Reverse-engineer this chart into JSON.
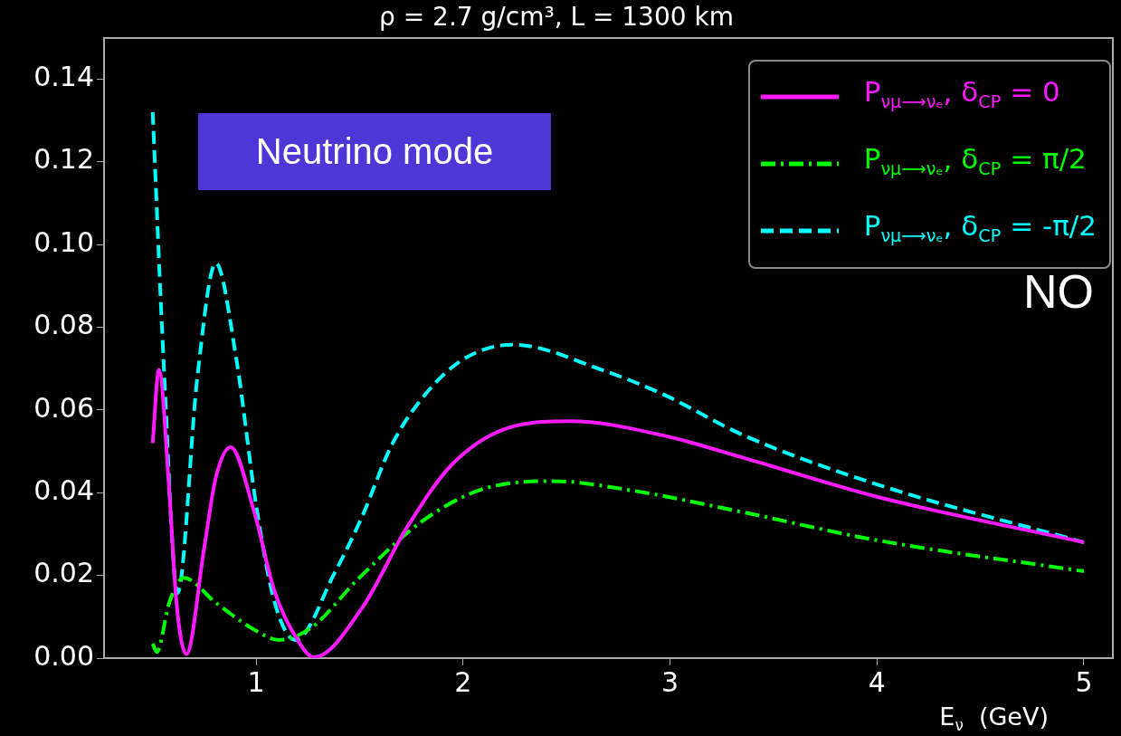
{
  "chart_data": {
    "type": "line",
    "title": "ρ = 2.7 g/cm³, L = 1300 km",
    "xlabel": "E$_{ν}$  (GeV)",
    "xlim": [
      0.265,
      5.14
    ],
    "ylim": [
      0,
      0.15
    ],
    "xticks": [
      1,
      2,
      3,
      4,
      5
    ],
    "yticks": [
      {
        "value": 0,
        "label": "0.00"
      },
      {
        "value": 0.02,
        "label": "0.02"
      },
      {
        "value": 0.04,
        "label": "0.04"
      },
      {
        "value": 0.06,
        "label": "0.06"
      },
      {
        "value": 0.08,
        "label": "0.08"
      },
      {
        "value": 0.1,
        "label": "0.10"
      },
      {
        "value": 0.12,
        "label": "0.12"
      },
      {
        "value": 0.14,
        "label": "0.14"
      }
    ],
    "grid": false,
    "legend": "top right",
    "marker": "none",
    "annotations": [
      "Neutrino mode",
      "NO"
    ],
    "series": [
      {
        "name": "P$_{νμ⟶νₑ}$, δ$_{CP}$ = 0",
        "color": "#ff1aff",
        "line_style": "solid",
        "x": [
          0.5,
          0.53,
          0.58,
          0.615,
          0.663,
          0.75,
          0.804,
          0.877,
          0.987,
          1.09,
          1.2,
          1.28,
          1.51,
          1.73,
          1.95,
          2.24,
          2.52,
          2.97,
          3.35,
          4.0,
          5.0
        ],
        "values": [
          0.052,
          0.0697,
          0.0406,
          0.0134,
          0.001,
          0.027,
          0.0434,
          0.051,
          0.036,
          0.016,
          0.0044,
          0.0002,
          0.012,
          0.0317,
          0.047,
          0.056,
          0.0573,
          0.0538,
          0.0485,
          0.039,
          0.028
        ]
      },
      {
        "name": "P$_{νμ⟶νₑ}$,  δ$_{CP}$ = π/2",
        "color": "#00ff00",
        "line_style": "dashdot",
        "x": [
          0.5,
          0.52,
          0.58,
          0.65,
          0.805,
          0.987,
          1.11,
          1.27,
          1.49,
          1.8,
          2.09,
          2.43,
          2.82,
          3.35,
          4.0,
          5.0
        ],
        "values": [
          0.0035,
          0.0015,
          0.0134,
          0.0194,
          0.0134,
          0.007,
          0.0044,
          0.0075,
          0.019,
          0.033,
          0.0408,
          0.0428,
          0.0405,
          0.0353,
          0.0285,
          0.021
        ]
      },
      {
        "name": "P$_{νμ⟶νₑ}$, δ$_{CP}$ = -π/2",
        "color": "#00ffff",
        "line_style": "dashed",
        "x": [
          0.5,
          0.554,
          0.62,
          0.716,
          0.805,
          0.904,
          1.003,
          1.09,
          1.19,
          1.38,
          1.51,
          1.656,
          1.805,
          1.993,
          2.24,
          2.68,
          2.97,
          3.35,
          4.0,
          5.0
        ],
        "values": [
          0.132,
          0.0706,
          0.0157,
          0.068,
          0.0955,
          0.0724,
          0.036,
          0.0134,
          0.0044,
          0.0207,
          0.034,
          0.0516,
          0.063,
          0.072,
          0.0758,
          0.0695,
          0.0637,
          0.054,
          0.042,
          0.028
        ]
      }
    ]
  }
}
